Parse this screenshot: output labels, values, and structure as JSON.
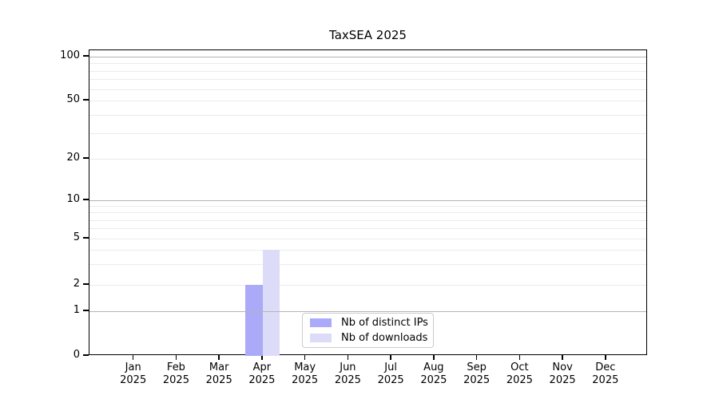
{
  "chart_data": {
    "type": "bar",
    "title": "TaxSEA 2025",
    "categories": [
      "Jan 2025",
      "Feb 2025",
      "Mar 2025",
      "Apr 2025",
      "May 2025",
      "Jun 2025",
      "Jul 2025",
      "Aug 2025",
      "Sep 2025",
      "Oct 2025",
      "Nov 2025",
      "Dec 2025"
    ],
    "series": [
      {
        "name": "Nb of distinct IPs",
        "color": "#aaaaf8",
        "values": [
          0,
          0,
          0,
          2,
          0,
          0,
          0,
          0,
          0,
          0,
          0,
          0
        ]
      },
      {
        "name": "Nb of downloads",
        "color": "#dcdcf8",
        "values": [
          0,
          0,
          0,
          4,
          0,
          0,
          0,
          0,
          0,
          0,
          0,
          0
        ]
      }
    ],
    "yticks": [
      0,
      1,
      2,
      5,
      10,
      20,
      50,
      100
    ],
    "xlabel": "",
    "ylabel": "",
    "scale": "log-like (symlog)",
    "ylim": [
      0,
      110
    ],
    "grid": "both (light minor lines, gray major lines at 1, 10, 100)",
    "legend_position": "lower center"
  }
}
